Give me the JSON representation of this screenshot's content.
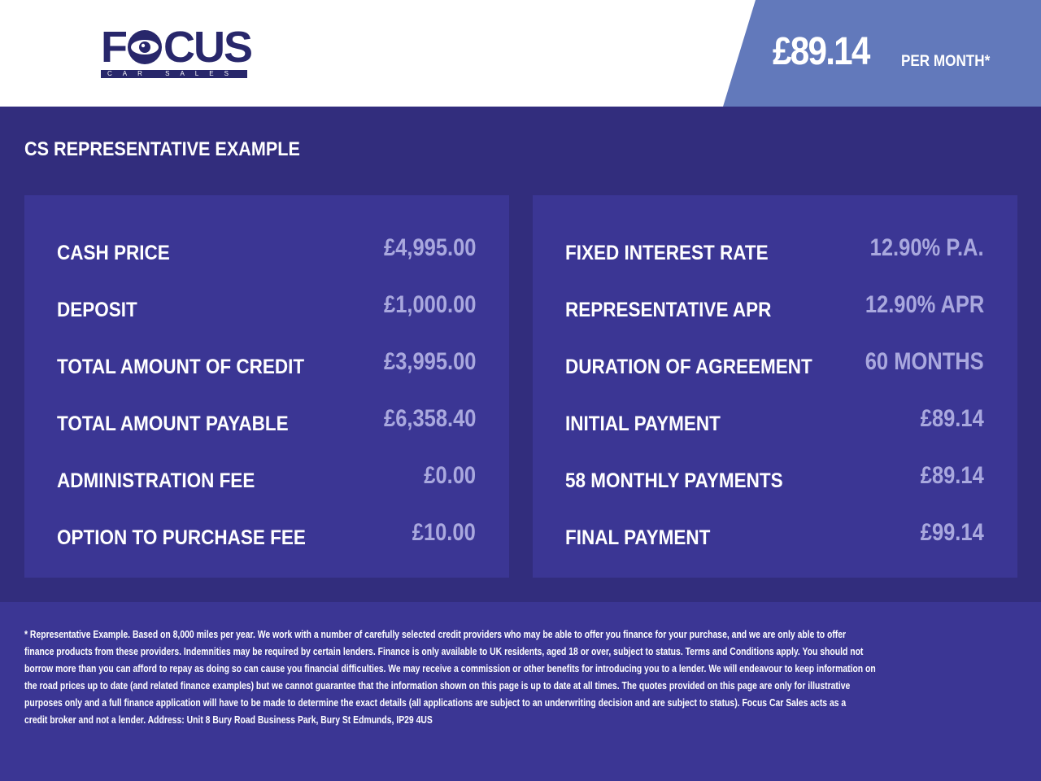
{
  "header": {
    "logo": {
      "text": "FOCUS",
      "subtext": "CAR SALES",
      "color": "#28276b"
    },
    "monthly_price": "£89.14",
    "per_month_label": "PER MONTH*"
  },
  "section_title": "CS REPRESENTATIVE EXAMPLE",
  "left_panel": [
    {
      "label": "CASH PRICE",
      "value": "£4,995.00"
    },
    {
      "label": "DEPOSIT",
      "value": "£1,000.00"
    },
    {
      "label": "TOTAL AMOUNT OF CREDIT",
      "value": "£3,995.00"
    },
    {
      "label": "TOTAL AMOUNT PAYABLE",
      "value": "£6,358.40"
    },
    {
      "label": "ADMINISTRATION FEE",
      "value": "£0.00"
    },
    {
      "label": "OPTION TO PURCHASE FEE",
      "value": "£10.00"
    }
  ],
  "right_panel": [
    {
      "label": "FIXED INTEREST RATE",
      "value": "12.90% P.A."
    },
    {
      "label": "REPRESENTATIVE APR",
      "value": "12.90% APR"
    },
    {
      "label": "DURATION OF AGREEMENT",
      "value": "60 MONTHS"
    },
    {
      "label": "INITIAL PAYMENT",
      "value": "£89.14"
    },
    {
      "label": "58 MONTHLY PAYMENTS",
      "value": "£89.14"
    },
    {
      "label": "FINAL PAYMENT",
      "value": "£99.14"
    }
  ],
  "footer_lines": [
    "* Representative Example. Based on 8,000 miles per year. We work with a number of carefully selected credit providers who may be able to offer you finance for your purchase, and we are only able to offer",
    "finance products from these providers. Indemnities may be required by certain lenders. Finance is only available to UK residents, aged 18 or over, subject to status. Terms and Conditions apply. You should not",
    "borrow more than you can afford to repay as doing so can cause you financial difficulties. We may receive a commission or other benefits for introducing you to a lender. We will endeavour to keep information on",
    "the road prices up to date (and related finance examples) but we cannot guarantee that the information shown on this page is up to date at all times. The quotes provided on this page are only for illustrative",
    "purposes only and a full finance application will have to be made to determine the exact details (all applications are subject to an underwriting decision and are subject to status). Focus Car Sales acts as a",
    "credit broker and not a lender. Address: Unit 8 Bury Road Business Park, Bury St Edmunds, IP29 4US"
  ]
}
